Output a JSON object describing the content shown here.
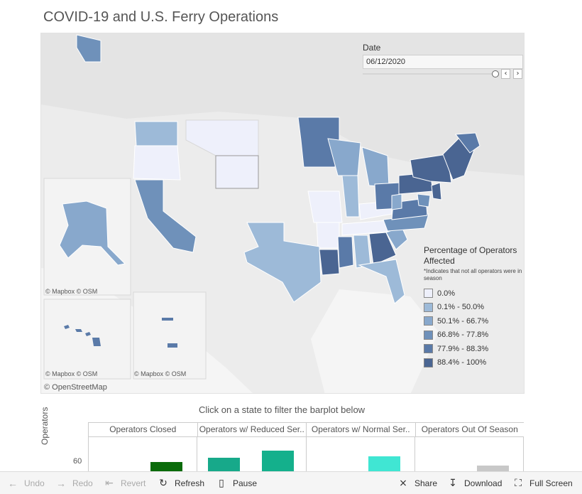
{
  "title": "COVID-19 and U.S. Ferry Operations",
  "date_filter": {
    "label": "Date",
    "value": "06/12/2020",
    "prev_icon": "chevron-left-icon",
    "next_icon": "chevron-right-icon"
  },
  "map": {
    "attribution_inset1": "© Mapbox  © OSM",
    "attribution_inset2": "© Mapbox  © OSM",
    "attribution_inset3": "© Mapbox  © OSM",
    "attribution_main": "© OpenStreetMap"
  },
  "legend": {
    "title": "Percentage of Operators Affected",
    "note": "*Indicates that not all operators were in season",
    "items": [
      {
        "label": "0.0%",
        "color": "#eef0fb"
      },
      {
        "label": "0.1% - 50.0%",
        "color": "#9dbad8"
      },
      {
        "label": "50.1% - 66.7%",
        "color": "#88a8cc"
      },
      {
        "label": "66.8% - 77.8%",
        "color": "#6f91ba"
      },
      {
        "label": "77.9% - 88.3%",
        "color": "#5a7aa8"
      },
      {
        "label": "88.4% - 100%",
        "color": "#4a6592"
      }
    ]
  },
  "filter_hint": "Click on a state to filter the barplot below",
  "barplot": {
    "ylabel": "Operators",
    "ytick": "60",
    "panels": [
      {
        "label": "Operators Closed"
      },
      {
        "label": "Operators w/ Reduced Ser.."
      },
      {
        "label": "Operators w/ Normal Ser.."
      },
      {
        "label": "Operators Out Of Season"
      }
    ]
  },
  "chart_data": {
    "type": "bar",
    "ylabel": "Operators",
    "panels": [
      "Operators Closed",
      "Operators w/ Reduced Ser..",
      "Operators w/ Normal Ser..",
      "Operators Out Of Season"
    ],
    "bars": [
      {
        "panel": "Operators Closed",
        "value": 60,
        "color": "#0a6b0a"
      },
      {
        "panel": "Operators w/ Reduced Ser..",
        "value": 64,
        "color": "#17a98a"
      },
      {
        "panel": "Operators w/ Reduced Ser..",
        "value": 70,
        "color": "#14b08c"
      },
      {
        "panel": "Operators w/ Normal Ser..",
        "value": 65,
        "color": "#40e6d3"
      },
      {
        "panel": "Operators Out Of Season",
        "value": 57,
        "color": "#c8c8c8"
      }
    ]
  },
  "toolbar": {
    "undo": "Undo",
    "redo": "Redo",
    "revert": "Revert",
    "refresh": "Refresh",
    "pause": "Pause",
    "share": "Share",
    "download": "Download",
    "fullscreen": "Full Screen"
  }
}
